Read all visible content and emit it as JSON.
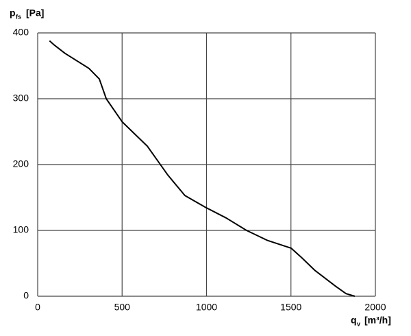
{
  "chart_data": {
    "type": "line",
    "y_label": {
      "symbol": "p",
      "subscript": "fs",
      "unit": "[Pa]"
    },
    "x_label": {
      "symbol": "q",
      "subscript": "v",
      "unit": "[m³/h]"
    },
    "x": [
      70,
      101,
      162,
      304,
      365,
      406,
      500,
      649,
      771,
      872,
      994,
      1116,
      1237,
      1359,
      1501,
      1562,
      1643,
      1765,
      1826,
      1878
    ],
    "values": [
      388,
      381,
      369,
      346,
      330,
      300,
      265,
      228,
      184,
      153,
      135,
      119,
      100,
      85,
      73,
      59,
      39,
      15,
      4,
      0
    ],
    "color": "#000000",
    "xlim": [
      0,
      2000
    ],
    "xticks": [
      0,
      500,
      1000,
      1500,
      2000
    ],
    "ylim": [
      0,
      400
    ],
    "yticks": [
      0,
      100,
      200,
      300,
      400
    ],
    "grid": true
  }
}
